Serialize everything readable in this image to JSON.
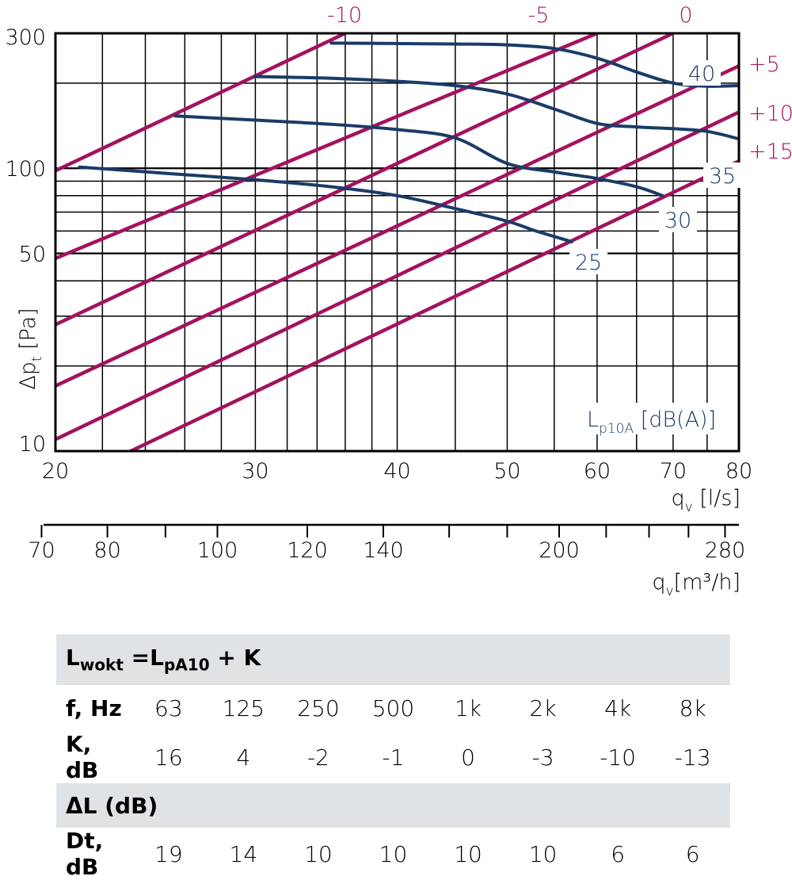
{
  "chart_data": {
    "type": "line",
    "x_scale": "log",
    "y_scale": "log",
    "xlim": [
      20,
      80
    ],
    "ylim": [
      10,
      300
    ],
    "x_ticks": [
      20,
      30,
      40,
      50,
      60,
      70,
      80
    ],
    "x_tick_labels": [
      "20",
      "30",
      "40",
      "50",
      "60",
      "70",
      "80"
    ],
    "y_ticks": [
      10,
      50,
      100,
      300
    ],
    "y_tick_labels": [
      "10",
      "50",
      "100",
      "300"
    ],
    "x_minor_ticks": [
      22,
      24,
      26,
      28,
      32,
      34,
      36,
      38,
      45,
      55,
      65,
      75
    ],
    "y_minor_ticks": [
      20,
      30,
      40,
      60,
      70,
      80,
      90,
      200
    ],
    "xlabel": "q",
    "xlabel_sub": "v",
    "xlabel_unit": " [l/s]",
    "ylabel": "Δp",
    "ylabel_sub": "t",
    "ylabel_unit": " [Pa]",
    "secondary_x_axis": {
      "label": "q",
      "label_sub": "v",
      "label_unit": "[m³/h]",
      "ticks": [
        70,
        80,
        100,
        120,
        140,
        200,
        280
      ],
      "tick_labels": [
        "70",
        "80",
        "100",
        "120",
        "140",
        "200",
        "280"
      ],
      "minor_ticks": [
        90,
        160,
        180,
        220,
        240,
        260
      ]
    },
    "sound_label_main": "L",
    "sound_label_sub": "p10A",
    "sound_label_unit": " [dB(A)]",
    "damper_lines": [
      {
        "label": "-10",
        "x": [
          20,
          36
        ],
        "y": [
          98,
          300
        ]
      },
      {
        "label": "-5",
        "x": [
          20,
          60
        ],
        "y": [
          48,
          300
        ]
      },
      {
        "label": "0",
        "x": [
          20,
          70
        ],
        "y": [
          28,
          300
        ]
      },
      {
        "label": "+5",
        "x": [
          20,
          80
        ],
        "y": [
          17,
          230
        ]
      },
      {
        "label": "+10",
        "x": [
          20,
          80
        ],
        "y": [
          11,
          158
        ]
      },
      {
        "label": "+15",
        "x": [
          23.3,
          80
        ],
        "y": [
          10,
          106
        ]
      }
    ],
    "sound_curves": [
      {
        "label": "25",
        "x": [
          21,
          25,
          30,
          35,
          40,
          45,
          50,
          53,
          57
        ],
        "y": [
          101,
          96,
          91,
          86,
          80,
          72,
          65,
          60,
          55
        ]
      },
      {
        "label": "30",
        "x": [
          25.5,
          30,
          35,
          40,
          45,
          50,
          55,
          60,
          65,
          68.5
        ],
        "y": [
          153,
          148,
          143,
          137,
          128,
          104,
          97,
          92,
          86,
          80
        ]
      },
      {
        "label": "35",
        "x": [
          30,
          35,
          40,
          45,
          50,
          55,
          60,
          65,
          70,
          75,
          80
        ],
        "y": [
          211,
          208,
          203,
          196,
          183,
          162,
          144,
          140,
          138,
          135,
          127
        ]
      },
      {
        "label": "40",
        "x": [
          35,
          40,
          45,
          50,
          55,
          60,
          65,
          70,
          75,
          80
        ],
        "y": [
          277,
          276,
          275,
          273,
          265,
          245,
          219,
          200,
          195,
          196
        ]
      }
    ]
  },
  "table": {
    "formula_lhs": "L",
    "formula_lhs_sub": "wokt",
    "formula_eq": " =L",
    "formula_rhs_sub": "pA10",
    "formula_tail": " + K",
    "freq_label": "f, Hz",
    "frequencies": [
      "63",
      "125",
      "250",
      "500",
      "1k",
      "2k",
      "4k",
      "8k"
    ],
    "k_label": "K, dB",
    "k_values": [
      "16",
      "4",
      "-2",
      "-1",
      "0",
      "-3",
      "-10",
      "-13"
    ],
    "delta_label": "ΔL (dB)",
    "dt_label": "Dt, dB",
    "dt_values": [
      "19",
      "14",
      "10",
      "10",
      "10",
      "10",
      "6",
      "6"
    ]
  },
  "colors": {
    "damper": "#a3125e",
    "curve": "#1a3b67",
    "grid": "#000000",
    "band": "#dfe3e6"
  }
}
